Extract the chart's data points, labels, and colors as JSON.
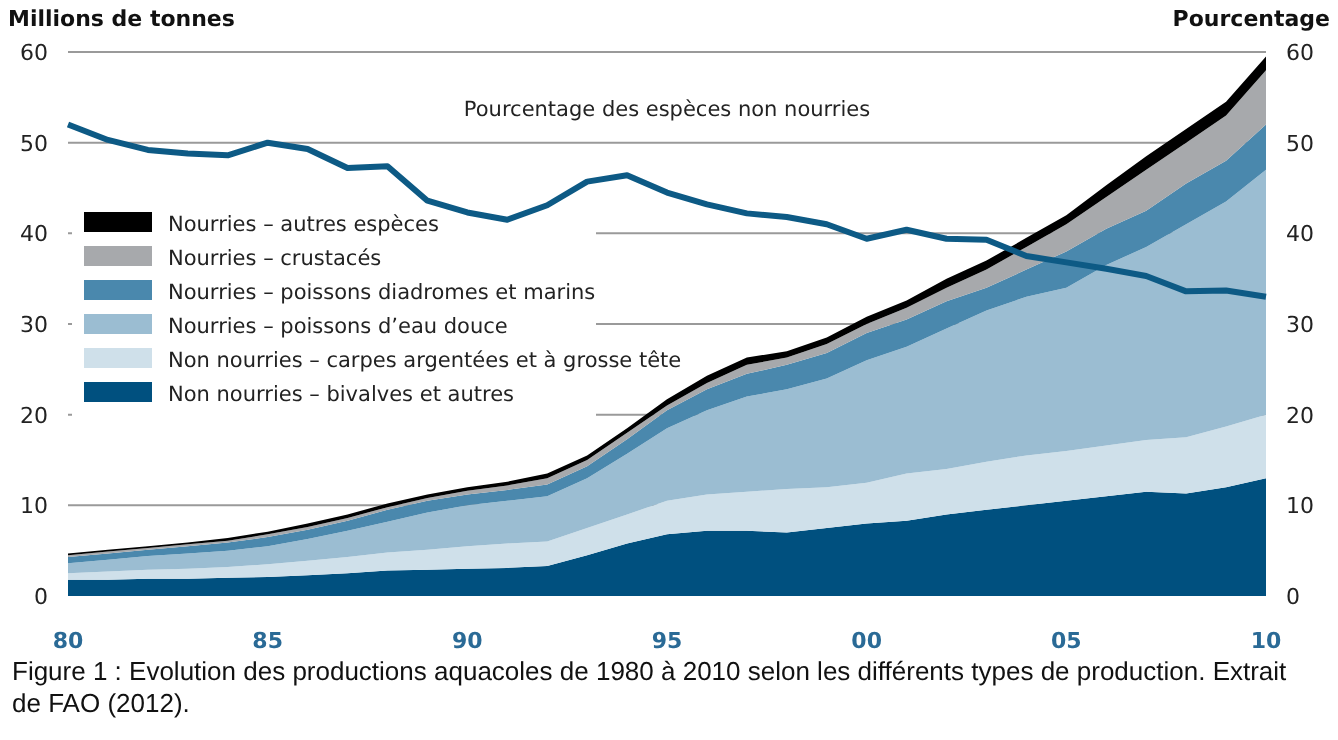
{
  "chart_data": {
    "type": "area",
    "stacked": true,
    "ylabel": "Millions de tonnes",
    "y2label": "Pourcentage",
    "x": [
      1980,
      1981,
      1982,
      1983,
      1984,
      1985,
      1986,
      1987,
      1988,
      1989,
      1990,
      1991,
      1992,
      1993,
      1994,
      1995,
      1996,
      1997,
      1998,
      1999,
      2000,
      2001,
      2002,
      2003,
      2004,
      2005,
      2006,
      2007,
      2008,
      2009,
      2010
    ],
    "xlim": [
      1980,
      2010
    ],
    "xticks": [
      {
        "value": 1980,
        "label": "80"
      },
      {
        "value": 1985,
        "label": "85"
      },
      {
        "value": 1990,
        "label": "90"
      },
      {
        "value": 1995,
        "label": "95"
      },
      {
        "value": 2000,
        "label": "00"
      },
      {
        "value": 2005,
        "label": "05"
      },
      {
        "value": 2010,
        "label": "10"
      }
    ],
    "ylim": [
      0,
      60
    ],
    "yticks": [
      0,
      10,
      20,
      30,
      40,
      50,
      60
    ],
    "y2lim": [
      0,
      60
    ],
    "y2ticks": [
      0,
      10,
      20,
      30,
      40,
      50,
      60
    ],
    "grid": "y",
    "legend": "top left",
    "series": [
      {
        "name": "Non nourries – bivalves et autres",
        "color": "#00507f",
        "values": [
          1.8,
          1.8,
          1.9,
          1.9,
          2.0,
          2.1,
          2.3,
          2.5,
          2.8,
          2.9,
          3.0,
          3.1,
          3.3,
          4.5,
          5.8,
          6.8,
          7.2,
          7.2,
          7.0,
          7.5,
          8.0,
          8.3,
          9.0,
          9.5,
          10.0,
          10.5,
          11.0,
          11.5,
          11.3,
          12.0,
          13.0
        ]
      },
      {
        "name": "Non nourries – carpes argentées et à grosse tête",
        "color": "#cfe0ea",
        "values": [
          0.7,
          0.9,
          1.0,
          1.1,
          1.2,
          1.4,
          1.6,
          1.8,
          2.0,
          2.2,
          2.5,
          2.7,
          2.7,
          3.0,
          3.2,
          3.7,
          4.0,
          4.3,
          4.8,
          4.5,
          4.5,
          5.2,
          5.0,
          5.3,
          5.5,
          5.5,
          5.6,
          5.7,
          6.2,
          6.7,
          7.0
        ]
      },
      {
        "name": "Nourries – poissons d’eau douce",
        "color": "#9bbdd2",
        "values": [
          1.1,
          1.3,
          1.5,
          1.7,
          1.8,
          2.0,
          2.4,
          2.9,
          3.4,
          4.1,
          4.5,
          4.7,
          5.0,
          5.5,
          6.7,
          8.0,
          9.3,
          10.5,
          11.0,
          12.0,
          13.5,
          14.0,
          15.5,
          16.7,
          17.5,
          18.0,
          19.9,
          21.3,
          23.5,
          24.8,
          27.0
        ]
      },
      {
        "name": "Nourries – poissons diadromes et marins",
        "color": "#4a88ad",
        "values": [
          0.7,
          0.7,
          0.7,
          0.8,
          0.9,
          1.0,
          1.0,
          1.1,
          1.3,
          1.3,
          1.2,
          1.2,
          1.3,
          1.3,
          1.6,
          2.0,
          2.3,
          2.5,
          2.7,
          2.8,
          3.0,
          3.0,
          3.0,
          2.5,
          3.0,
          4.0,
          4.0,
          4.0,
          4.5,
          4.5,
          5.0
        ]
      },
      {
        "name": "Nourries – crustacés",
        "color": "#a7a9ac",
        "values": [
          0.2,
          0.2,
          0.2,
          0.2,
          0.2,
          0.3,
          0.3,
          0.3,
          0.3,
          0.3,
          0.4,
          0.5,
          0.7,
          0.7,
          0.7,
          0.5,
          0.7,
          1.0,
          0.8,
          1.0,
          1.0,
          1.3,
          1.5,
          2.0,
          2.5,
          3.0,
          3.5,
          4.5,
          4.5,
          5.0,
          6.0
        ]
      },
      {
        "name": "Nourries – autres espèces",
        "color": "#000000",
        "values": [
          0.2,
          0.2,
          0.2,
          0.2,
          0.3,
          0.3,
          0.4,
          0.4,
          0.4,
          0.4,
          0.4,
          0.4,
          0.5,
          0.5,
          0.5,
          0.7,
          0.8,
          0.8,
          0.7,
          0.7,
          0.8,
          0.8,
          1.0,
          1.0,
          1.0,
          1.0,
          1.3,
          1.5,
          1.5,
          1.5,
          1.5
        ]
      },
      {
        "type": "line",
        "axis": "y2",
        "color": "#0d5a85",
        "values": [
          52,
          50.3,
          49.2,
          48.8,
          48.6,
          50,
          49.3,
          47.2,
          47.4,
          43.6,
          42.3,
          41.5,
          43.1,
          45.7,
          46.4,
          44.5,
          43.2,
          42.2,
          41.8,
          41.0,
          39.4,
          40.4,
          39.4,
          39.3,
          37.5,
          36.8,
          36.1,
          35.3,
          33.6,
          33.7,
          33.0
        ]
      }
    ],
    "annotations": [
      "Pourcentage des espèces non nourries",
      "Figure 1 : Evolution des productions aquacoles de 1980 à 2010 selon les différents types de production. Extrait de FAO (2012)."
    ]
  }
}
